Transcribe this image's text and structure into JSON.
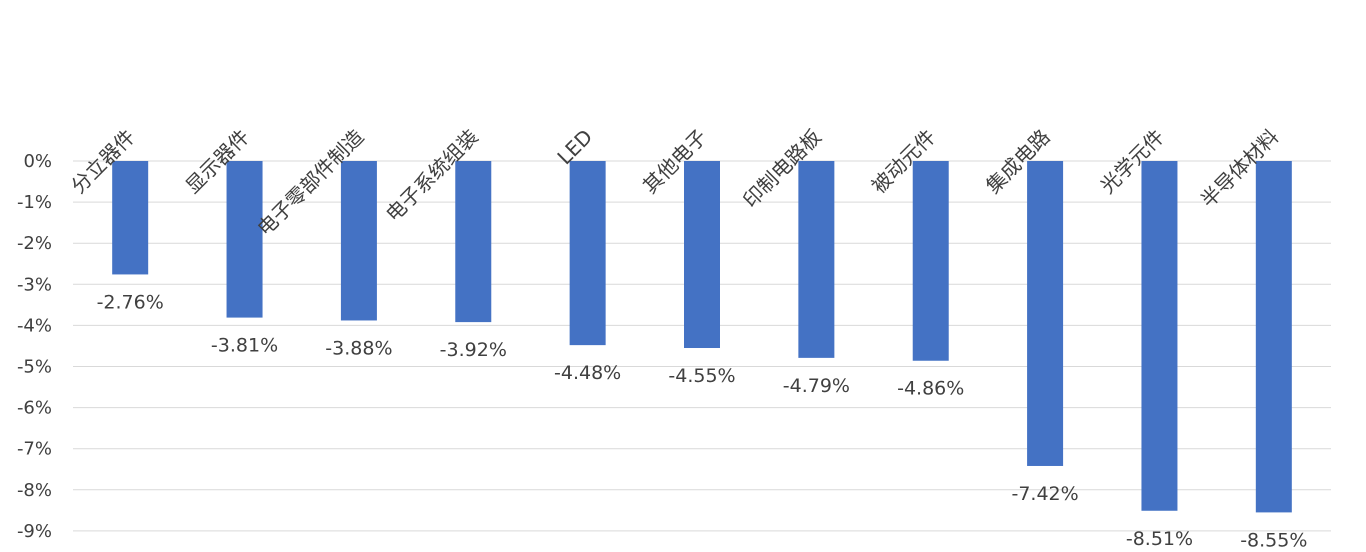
{
  "chart_data": {
    "type": "bar",
    "title": "",
    "xlabel": "",
    "ylabel": "",
    "categories": [
      "分立器件",
      "显示器件",
      "电子零部件制造",
      "电子系统组装",
      "LED",
      "其他电子",
      "印制电路板",
      "被动元件",
      "集成电路",
      "光学元件",
      "半导体材料"
    ],
    "values": [
      -2.76,
      -3.81,
      -3.88,
      -3.92,
      -4.48,
      -4.55,
      -4.79,
      -4.86,
      -7.42,
      -8.51,
      -8.55
    ],
    "data_labels": [
      "-2.76%",
      "-3.81%",
      "-3.88%",
      "-3.92%",
      "-4.48%",
      "-4.55%",
      "-4.79%",
      "-4.86%",
      "-7.42%",
      "-8.51%",
      "-8.55%"
    ],
    "y_ticks": [
      "0%",
      "-1%",
      "-2%",
      "-3%",
      "-4%",
      "-5%",
      "-6%",
      "-7%",
      "-8%",
      "-9%"
    ],
    "ylim": [
      -9,
      0
    ],
    "grid": true,
    "legend": "none",
    "colors": {
      "bar": "#4472c4",
      "grid": "#d9d9d9",
      "text": "#404040"
    }
  }
}
